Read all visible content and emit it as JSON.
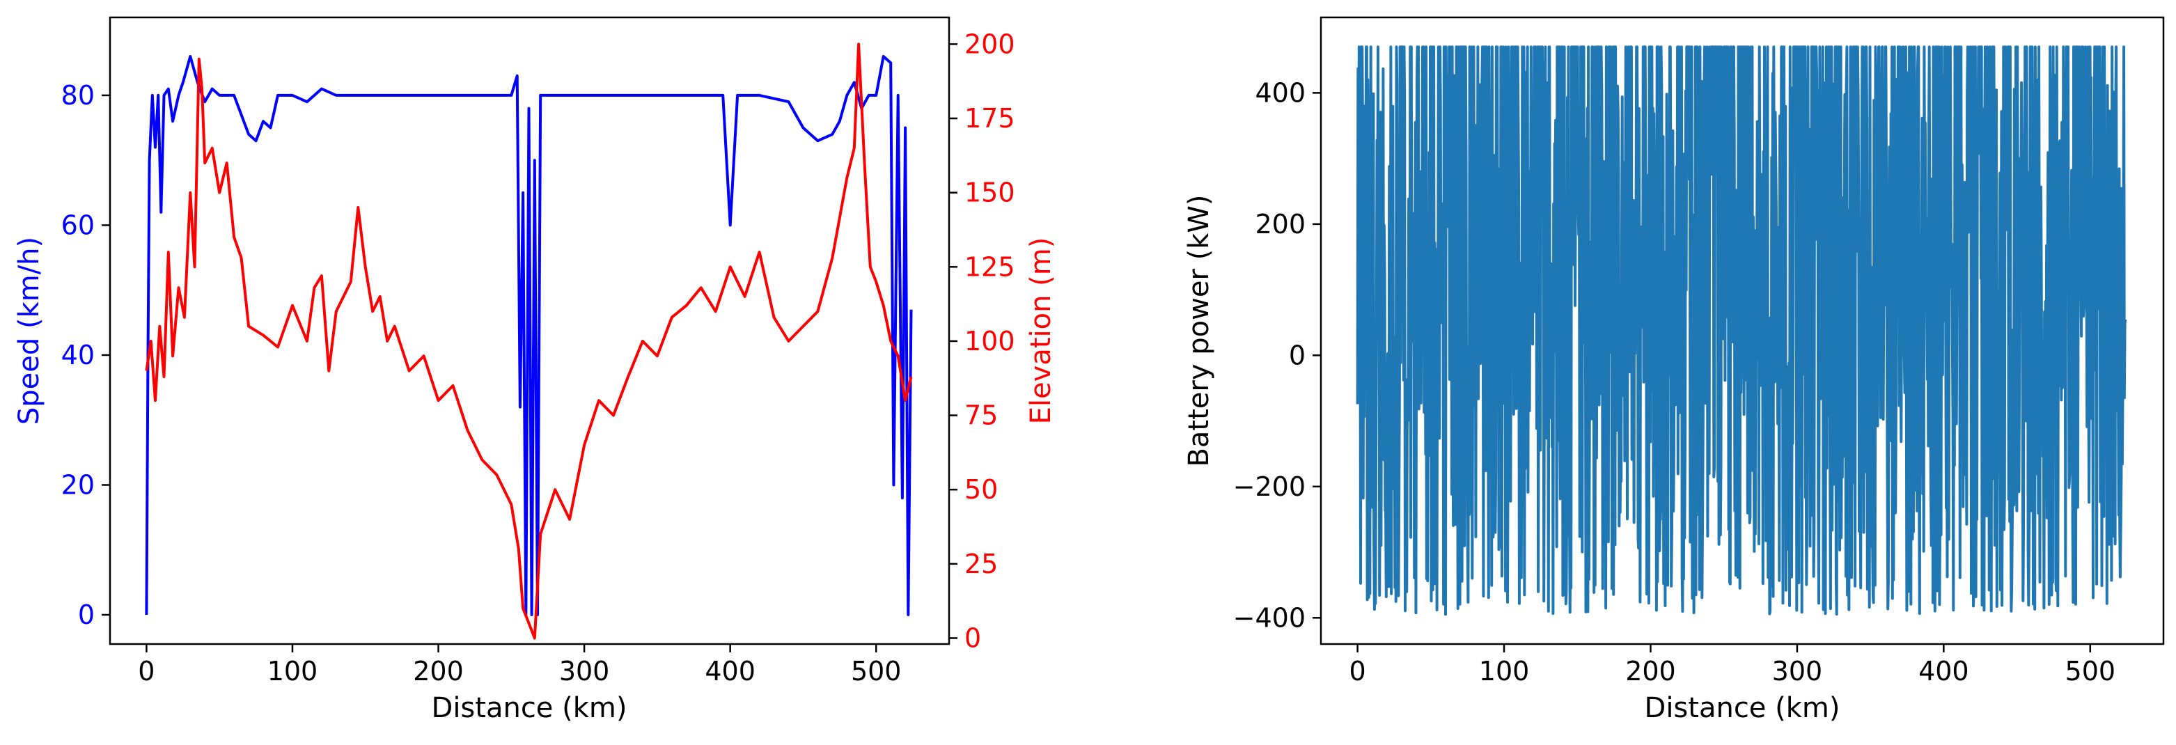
{
  "chart_data": [
    {
      "type": "line",
      "x_axis": {
        "label": "Distance (km)",
        "ticks": [
          0,
          100,
          200,
          300,
          400,
          500
        ],
        "range": [
          -25,
          550
        ]
      },
      "y_axis_left": {
        "label": "Speed (km/h)",
        "ticks": [
          0,
          20,
          40,
          60,
          80
        ],
        "range": [
          -4.5,
          92
        ],
        "color": "#0000ff"
      },
      "y_axis_right": {
        "label": "Elevation (m)",
        "ticks": [
          0,
          25,
          50,
          75,
          100,
          125,
          150,
          175,
          200
        ],
        "range": [
          -2,
          209
        ],
        "color": "#ff0000"
      },
      "grid": false,
      "series": [
        {
          "name": "Speed",
          "axis": "left",
          "color": "#0000ff",
          "x": [
            0,
            1,
            2,
            4,
            6,
            8,
            10,
            12,
            15,
            18,
            22,
            25,
            30,
            35,
            40,
            45,
            50,
            60,
            70,
            75,
            80,
            85,
            90,
            100,
            110,
            120,
            130,
            140,
            150,
            160,
            170,
            180,
            200,
            210,
            220,
            230,
            240,
            250,
            254,
            256,
            258,
            260,
            262,
            264,
            266,
            268,
            270,
            280,
            300,
            320,
            340,
            360,
            380,
            395,
            400,
            405,
            420,
            440,
            450,
            460,
            470,
            475,
            480,
            485,
            490,
            495,
            500,
            505,
            510,
            512,
            515,
            518,
            520,
            522,
            524
          ],
          "values": [
            0,
            40,
            70,
            80,
            72,
            80,
            62,
            80,
            81,
            76,
            80,
            82,
            86,
            82,
            79,
            81,
            80,
            80,
            74,
            73,
            76,
            75,
            80,
            80,
            79,
            81,
            80,
            80,
            80,
            80,
            80,
            80,
            80,
            80,
            80,
            80,
            80,
            80,
            83,
            32,
            65,
            0,
            78,
            0,
            70,
            0,
            80,
            80,
            80,
            80,
            80,
            80,
            80,
            80,
            60,
            80,
            80,
            79,
            75,
            73,
            74,
            76,
            80,
            82,
            78,
            80,
            80,
            86,
            85,
            20,
            80,
            18,
            75,
            0,
            47
          ]
        },
        {
          "name": "Elevation",
          "axis": "right",
          "color": "#ff0000",
          "x": [
            0,
            3,
            6,
            9,
            12,
            15,
            18,
            22,
            26,
            30,
            33,
            36,
            38,
            40,
            45,
            50,
            55,
            60,
            65,
            70,
            80,
            90,
            100,
            110,
            115,
            120,
            125,
            130,
            140,
            145,
            150,
            155,
            160,
            165,
            170,
            180,
            190,
            200,
            210,
            220,
            230,
            240,
            250,
            255,
            258,
            262,
            266,
            270,
            280,
            290,
            300,
            310,
            320,
            330,
            340,
            350,
            360,
            370,
            380,
            390,
            400,
            410,
            420,
            430,
            440,
            450,
            460,
            470,
            480,
            485,
            488,
            492,
            496,
            500,
            505,
            510,
            515,
            520,
            524
          ],
          "values": [
            90,
            100,
            80,
            105,
            88,
            130,
            95,
            118,
            108,
            150,
            125,
            195,
            185,
            160,
            165,
            150,
            160,
            135,
            128,
            105,
            102,
            98,
            112,
            100,
            118,
            122,
            90,
            110,
            120,
            145,
            125,
            110,
            115,
            100,
            105,
            90,
            95,
            80,
            85,
            70,
            60,
            55,
            45,
            30,
            10,
            5,
            0,
            35,
            50,
            40,
            65,
            80,
            75,
            88,
            100,
            95,
            108,
            112,
            118,
            110,
            125,
            115,
            130,
            108,
            100,
            105,
            110,
            128,
            155,
            165,
            200,
            160,
            125,
            120,
            112,
            100,
            95,
            80,
            88
          ]
        }
      ]
    },
    {
      "type": "line",
      "x_axis": {
        "label": "Distance (km)",
        "ticks": [
          0,
          100,
          200,
          300,
          400,
          500
        ],
        "range": [
          -25,
          550
        ]
      },
      "y_axis": {
        "label": "Battery power (kW)",
        "ticks": [
          -400,
          -200,
          0,
          200,
          400
        ],
        "range": [
          -440,
          515
        ]
      },
      "grid": false,
      "series": [
        {
          "color": "#1f77b4",
          "x_start": 0,
          "x_end": 524,
          "upper_limit": 470,
          "lower_limit": -395
        }
      ]
    }
  ]
}
